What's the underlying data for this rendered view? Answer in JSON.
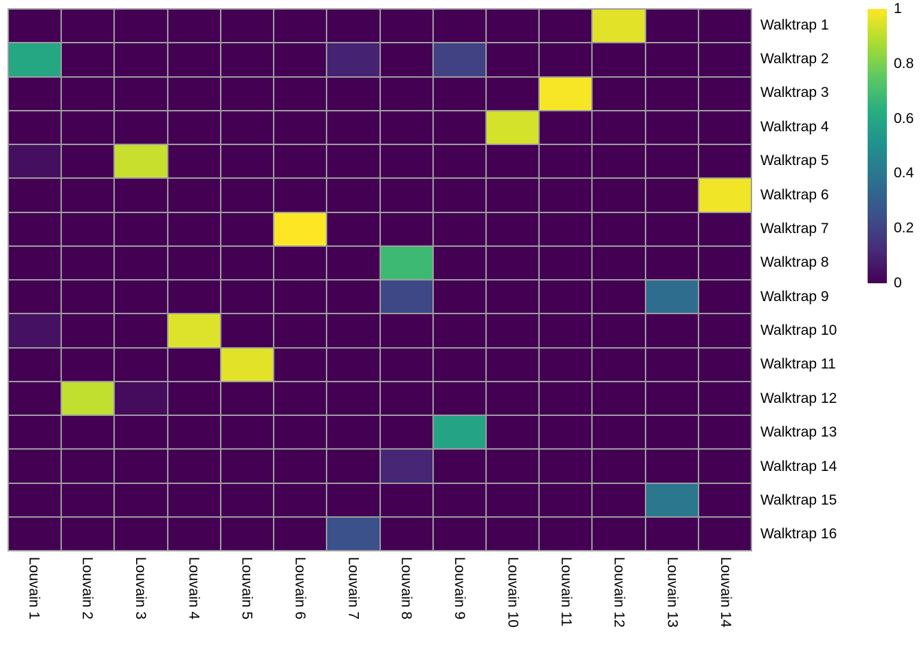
{
  "chart_data": {
    "type": "heatmap",
    "title": "",
    "xlabel": "",
    "ylabel": "",
    "rows": [
      "Walktrap 1",
      "Walktrap 2",
      "Walktrap 3",
      "Walktrap 4",
      "Walktrap 5",
      "Walktrap 6",
      "Walktrap 7",
      "Walktrap 8",
      "Walktrap 9",
      "Walktrap 10",
      "Walktrap 11",
      "Walktrap 12",
      "Walktrap 13",
      "Walktrap 14",
      "Walktrap 15",
      "Walktrap 16"
    ],
    "columns": [
      "Louvain 1",
      "Louvain 2",
      "Louvain 3",
      "Louvain 4",
      "Louvain 5",
      "Louvain 6",
      "Louvain 7",
      "Louvain 8",
      "Louvain 9",
      "Louvain 10",
      "Louvain 11",
      "Louvain 12",
      "Louvain 13",
      "Louvain 14"
    ],
    "values": [
      [
        0,
        0,
        0,
        0,
        0,
        0,
        0,
        0,
        0,
        0,
        0,
        0.96,
        0,
        0
      ],
      [
        0.6,
        0,
        0,
        0,
        0,
        0,
        0.1,
        0,
        0.2,
        0,
        0,
        0,
        0,
        0
      ],
      [
        0,
        0,
        0,
        0,
        0,
        0,
        0,
        0,
        0,
        0,
        0.99,
        0,
        0,
        0
      ],
      [
        0,
        0,
        0,
        0,
        0,
        0,
        0,
        0,
        0,
        0.94,
        0,
        0,
        0,
        0
      ],
      [
        0.04,
        0,
        0.92,
        0,
        0,
        0,
        0,
        0,
        0,
        0,
        0,
        0,
        0,
        0
      ],
      [
        0,
        0,
        0,
        0,
        0,
        0,
        0,
        0,
        0,
        0,
        0,
        0,
        0,
        0.98
      ],
      [
        0,
        0,
        0,
        0,
        0,
        1,
        0,
        0,
        0,
        0,
        0,
        0,
        0,
        0
      ],
      [
        0,
        0,
        0,
        0,
        0,
        0,
        0,
        0.68,
        0,
        0,
        0,
        0,
        0,
        0
      ],
      [
        0,
        0,
        0,
        0,
        0,
        0,
        0,
        0.22,
        0,
        0,
        0,
        0,
        0.36,
        0
      ],
      [
        0.05,
        0,
        0,
        0.95,
        0,
        0,
        0,
        0,
        0,
        0,
        0,
        0,
        0,
        0
      ],
      [
        0,
        0,
        0,
        0,
        0.96,
        0,
        0,
        0,
        0,
        0,
        0,
        0,
        0,
        0
      ],
      [
        0,
        0.91,
        0.03,
        0,
        0,
        0,
        0,
        0,
        0,
        0,
        0,
        0,
        0,
        0
      ],
      [
        0,
        0,
        0,
        0,
        0,
        0,
        0,
        0,
        0.58,
        0,
        0,
        0,
        0,
        0
      ],
      [
        0,
        0,
        0,
        0,
        0,
        0,
        0,
        0.11,
        0,
        0,
        0,
        0,
        0,
        0
      ],
      [
        0,
        0,
        0,
        0,
        0,
        0,
        0,
        0,
        0,
        0,
        0,
        0,
        0.4,
        0
      ],
      [
        0,
        0,
        0,
        0,
        0,
        0,
        0.25,
        0,
        0,
        0,
        0,
        0,
        0,
        0
      ]
    ],
    "value_range": [
      0,
      1
    ],
    "colormap": "viridis",
    "grid_on": true,
    "grid_color": "#9e9e9e",
    "background_cell_color": "#440154",
    "legend_position": "right",
    "colorbar": {
      "min": 0,
      "max": 1,
      "tick_labels": [
        "1",
        "0.8",
        "0.6",
        "0.4",
        "0.2",
        "0"
      ],
      "tick_values": [
        1,
        0.8,
        0.6,
        0.4,
        0.2,
        0
      ]
    }
  }
}
